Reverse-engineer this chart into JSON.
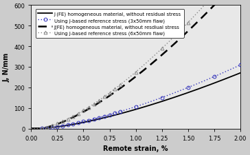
{
  "title": "",
  "xlabel": "Remote strain, %",
  "ylabel": "J, N/mm",
  "xlim": [
    0.0,
    2.0
  ],
  "ylim": [
    0,
    600
  ],
  "xticks": [
    0.0,
    0.25,
    0.5,
    0.75,
    1.0,
    1.25,
    1.5,
    1.75,
    2.0
  ],
  "yticks": [
    0,
    100,
    200,
    300,
    400,
    500,
    600
  ],
  "legend_entries": [
    "J (FE) homogeneous material, without residual stress",
    "Using J-based reference stress (3x50mm flaw)",
    "J(FE) homogeneous material, without resdiual stress",
    "Using J-based reference stress (6x50mm flaw)"
  ],
  "line1_color": "black",
  "line2_color": "#3333bb",
  "line3_color": "black",
  "line4_color": "#888888",
  "background_color": "#cccccc",
  "plot_bg_color": "#e8e8e8",
  "legend_fontsize": 5.0,
  "tick_fontsize": 6.0,
  "axis_label_fontsize": 7.0
}
